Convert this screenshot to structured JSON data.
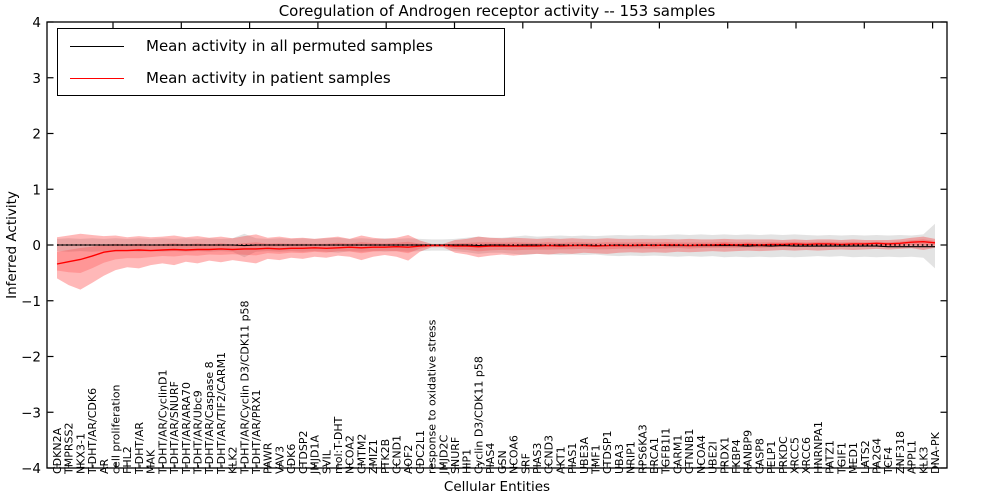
{
  "chart_data": {
    "type": "line",
    "title": "Coregulation of Androgen receptor activity -- 153 samples",
    "samples_count": 153,
    "xlabel": "Cellular Entities",
    "ylabel": "Inferred Activity",
    "ylim": [
      -4,
      4
    ],
    "y_ticks": [
      4,
      3,
      2,
      1,
      0,
      -1,
      -2,
      -3,
      -4
    ],
    "grid": false,
    "legend_position": "upper left",
    "reference_line": {
      "y": 0,
      "style": "dotted",
      "color": "#000000"
    },
    "categories": [
      "CDKN2A",
      "TMPRSS2",
      "NKX3-1",
      "T-DHT/AR/CDK6",
      "AR",
      "cell proliferation",
      "FHL2",
      "T-DHT/AR",
      "MAK",
      "T-DHT/AR/CyclinD1",
      "T-DHT/AR/SNURF",
      "T-DHT/AR/ARA70",
      "T-DHT/AR/Ubc9",
      "T-DHT/AR/Caspase 8",
      "T-DHT/AR/TIF2/CARM1",
      "KLK2",
      "T-DHT/AR/Cyclin D3/CDK11 p58",
      "T-DHT/AR/PRX1",
      "PAWR",
      "VAV3",
      "CDK6",
      "CTDSP2",
      "JMJD1A",
      "SVIL",
      "mol:T-DHT",
      "NCOA2",
      "CMTM2",
      "ZMIZ1",
      "PTK2B",
      "CCND1",
      "AOF2",
      "CDC2L1",
      "response to oxidative stress",
      "JMJD2C",
      "SNURF",
      "HIP1",
      "Cyclin D3/CDK11 p58",
      "PIAS4",
      "GSN",
      "NCOA6",
      "SRF",
      "PIAS3",
      "CCND3",
      "AKT1",
      "PIAS1",
      "UBE3A",
      "TMF1",
      "CTDSP1",
      "UBA3",
      "NRIP1",
      "RPS6KA3",
      "BRCA1",
      "TGFB1I1",
      "CARM1",
      "CTNNB1",
      "NCOA4",
      "UBE2I",
      "PRDX1",
      "FKBP4",
      "RANBP9",
      "CASP8",
      "PELP1",
      "PRKDC",
      "XRCC5",
      "XRCC6",
      "HNRNPA1",
      "PATZ1",
      "TGIF1",
      "MED1",
      "LATS2",
      "PA2G4",
      "TCF4",
      "ZNF318",
      "APPL1",
      "KLK3",
      "DNA-PK"
    ],
    "series": [
      {
        "name": "Mean activity in all permuted samples",
        "color": "#000000",
        "band_fill": "rgba(0,0,0,0.11)",
        "values": [
          0,
          0,
          0,
          0,
          0,
          0,
          0,
          0,
          0,
          0,
          0,
          0,
          0,
          0,
          0,
          0,
          -0.01,
          0,
          0,
          0,
          0,
          0,
          0,
          0,
          0,
          0,
          0,
          0,
          0,
          0,
          0,
          0,
          0,
          0,
          0,
          0,
          -0.01,
          0,
          0,
          -0.01,
          0,
          0,
          -0.01,
          0,
          -0.01,
          0,
          -0.01,
          -0.01,
          0,
          -0.01,
          -0.01,
          0,
          -0.01,
          -0.01,
          -0.01,
          -0.01,
          -0.01,
          -0.01,
          -0.01,
          -0.02,
          -0.01,
          -0.02,
          -0.01,
          -0.02,
          -0.02,
          -0.02,
          -0.02,
          -0.02,
          -0.02,
          -0.02,
          -0.02,
          -0.03,
          -0.03,
          -0.03,
          -0.03,
          -0.03
        ],
        "band_upper": [
          0.11,
          0.12,
          0.11,
          0.12,
          0.11,
          0.12,
          0.11,
          0.12,
          0.11,
          0.12,
          0.11,
          0.12,
          0.11,
          0.12,
          0.11,
          0.12,
          0.2,
          0.12,
          0.11,
          0.12,
          0.11,
          0.12,
          0.11,
          0.12,
          0.13,
          0.11,
          0.12,
          0.11,
          0.12,
          0.11,
          0.12,
          0.11,
          0.1,
          0.1,
          0.11,
          0.13,
          0.15,
          0.13,
          0.13,
          0.15,
          0.17,
          0.15,
          0.16,
          0.17,
          0.16,
          0.17,
          0.16,
          0.17,
          0.18,
          0.17,
          0.18,
          0.17,
          0.18,
          0.19,
          0.18,
          0.19,
          0.18,
          0.19,
          0.18,
          0.19,
          0.18,
          0.19,
          0.18,
          0.19,
          0.18,
          0.17,
          0.18,
          0.17,
          0.18,
          0.17,
          0.18,
          0.17,
          0.18,
          0.17,
          0.19,
          0.38
        ],
        "band_lower": [
          -0.11,
          -0.12,
          -0.11,
          -0.12,
          -0.11,
          -0.12,
          -0.11,
          -0.12,
          -0.11,
          -0.12,
          -0.11,
          -0.12,
          -0.11,
          -0.12,
          -0.11,
          -0.12,
          -0.22,
          -0.12,
          -0.11,
          -0.12,
          -0.11,
          -0.12,
          -0.11,
          -0.12,
          -0.14,
          -0.11,
          -0.12,
          -0.11,
          -0.12,
          -0.11,
          -0.12,
          -0.11,
          -0.1,
          -0.1,
          -0.11,
          -0.13,
          -0.16,
          -0.14,
          -0.14,
          -0.16,
          -0.18,
          -0.16,
          -0.17,
          -0.18,
          -0.17,
          -0.18,
          -0.17,
          -0.19,
          -0.2,
          -0.19,
          -0.2,
          -0.19,
          -0.2,
          -0.21,
          -0.2,
          -0.21,
          -0.2,
          -0.22,
          -0.21,
          -0.22,
          -0.21,
          -0.22,
          -0.21,
          -0.22,
          -0.21,
          -0.2,
          -0.21,
          -0.2,
          -0.22,
          -0.21,
          -0.22,
          -0.21,
          -0.22,
          -0.21,
          -0.23,
          -0.42
        ]
      },
      {
        "name": "Mean activity in patient samples",
        "color": "#ff0000",
        "band_fill": "rgba(255,0,0,0.28)",
        "values": [
          -0.34,
          -0.3,
          -0.26,
          -0.2,
          -0.13,
          -0.1,
          -0.1,
          -0.09,
          -0.1,
          -0.09,
          -0.08,
          -0.09,
          -0.08,
          -0.08,
          -0.07,
          -0.08,
          -0.07,
          -0.07,
          -0.06,
          -0.07,
          -0.06,
          -0.06,
          -0.05,
          -0.06,
          -0.05,
          -0.04,
          -0.05,
          -0.04,
          -0.04,
          -0.03,
          -0.04,
          -0.02,
          -0.01,
          -0.01,
          -0.02,
          -0.02,
          -0.03,
          -0.02,
          -0.02,
          -0.02,
          -0.02,
          -0.02,
          -0.01,
          -0.02,
          -0.01,
          -0.01,
          -0.02,
          -0.01,
          -0.01,
          -0.01,
          0.0,
          -0.01,
          0.0,
          0.0,
          -0.01,
          0.0,
          0.0,
          0.01,
          0.0,
          0.01,
          0.0,
          0.01,
          0.01,
          0.02,
          0.01,
          0.02,
          0.02,
          0.01,
          0.02,
          0.02,
          0.03,
          0.02,
          0.03,
          0.05,
          0.06,
          0.04
        ],
        "band_upper": [
          0.14,
          0.17,
          0.2,
          0.18,
          0.16,
          0.17,
          0.14,
          0.16,
          0.14,
          0.15,
          0.17,
          0.14,
          0.16,
          0.13,
          0.15,
          0.12,
          0.16,
          0.19,
          0.13,
          0.15,
          0.12,
          0.13,
          0.11,
          0.13,
          0.15,
          0.11,
          0.17,
          0.13,
          0.11,
          0.13,
          0.18,
          0.08,
          0.02,
          0.02,
          0.09,
          0.11,
          0.15,
          0.13,
          0.12,
          0.13,
          0.12,
          0.11,
          0.12,
          0.11,
          0.12,
          0.11,
          0.11,
          0.12,
          0.11,
          0.11,
          0.11,
          0.11,
          0.11,
          0.1,
          0.11,
          0.1,
          0.1,
          0.11,
          0.1,
          0.1,
          0.1,
          0.1,
          0.09,
          0.1,
          0.09,
          0.1,
          0.1,
          0.09,
          0.1,
          0.09,
          0.09,
          0.09,
          0.1,
          0.13,
          0.15,
          0.11
        ],
        "band_lower": [
          -0.6,
          -0.72,
          -0.8,
          -0.68,
          -0.55,
          -0.45,
          -0.4,
          -0.42,
          -0.36,
          -0.33,
          -0.36,
          -0.3,
          -0.33,
          -0.28,
          -0.31,
          -0.27,
          -0.3,
          -0.33,
          -0.25,
          -0.27,
          -0.23,
          -0.25,
          -0.21,
          -0.23,
          -0.19,
          -0.21,
          -0.27,
          -0.21,
          -0.18,
          -0.21,
          -0.28,
          -0.12,
          -0.04,
          -0.04,
          -0.14,
          -0.17,
          -0.22,
          -0.19,
          -0.17,
          -0.19,
          -0.17,
          -0.16,
          -0.17,
          -0.15,
          -0.16,
          -0.14,
          -0.15,
          -0.16,
          -0.14,
          -0.13,
          -0.14,
          -0.13,
          -0.14,
          -0.12,
          -0.13,
          -0.12,
          -0.11,
          -0.12,
          -0.11,
          -0.1,
          -0.11,
          -0.1,
          -0.09,
          -0.1,
          -0.09,
          -0.1,
          -0.09,
          -0.08,
          -0.09,
          -0.08,
          -0.07,
          -0.08,
          -0.07,
          -0.06,
          -0.09,
          -0.05
        ]
      }
    ]
  }
}
